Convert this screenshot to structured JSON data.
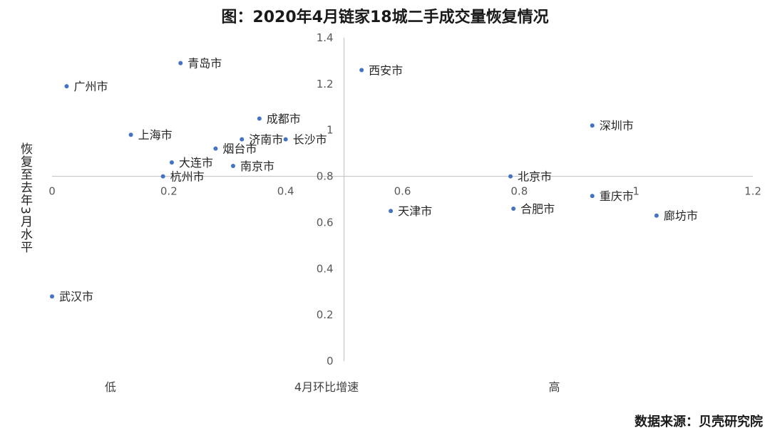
{
  "chart_data": {
    "type": "scatter",
    "title": "图：2020年4月链家18城二手成交量恢复情况",
    "ylabel": "恢复至去年3月水平",
    "xlim": [
      0,
      1.2
    ],
    "ylim": [
      0,
      1.4
    ],
    "x_ticks": [
      "0",
      "0.2",
      "0.4",
      "0.6",
      "0.8",
      "1",
      "1.2"
    ],
    "y_ticks": [
      "0",
      "0.2",
      "0.4",
      "0.6",
      "0.8",
      "1",
      "1.2",
      "1.4"
    ],
    "x_axis_crosses_y_at": 0.8,
    "y_axis_crosses_x_at": 0.5,
    "x_categories": [
      "低",
      "4月环比增速",
      "高"
    ],
    "grid": false,
    "marker_color": "#4472c4",
    "points": [
      {
        "label": "青岛市",
        "x": 0.22,
        "y": 1.29
      },
      {
        "label": "广州市",
        "x": 0.025,
        "y": 1.19
      },
      {
        "label": "西安市",
        "x": 0.53,
        "y": 1.26
      },
      {
        "label": "成都市",
        "x": 0.355,
        "y": 1.05
      },
      {
        "label": "深圳市",
        "x": 0.925,
        "y": 1.02
      },
      {
        "label": "上海市",
        "x": 0.135,
        "y": 0.98
      },
      {
        "label": "济南市",
        "x": 0.325,
        "y": 0.96
      },
      {
        "label": "长沙市",
        "x": 0.4,
        "y": 0.96
      },
      {
        "label": "烟台市",
        "x": 0.28,
        "y": 0.92
      },
      {
        "label": "大连市",
        "x": 0.205,
        "y": 0.86
      },
      {
        "label": "南京市",
        "x": 0.31,
        "y": 0.845
      },
      {
        "label": "杭州市",
        "x": 0.19,
        "y": 0.8
      },
      {
        "label": "北京市",
        "x": 0.785,
        "y": 0.8
      },
      {
        "label": "重庆市",
        "x": 0.925,
        "y": 0.715
      },
      {
        "label": "合肥市",
        "x": 0.79,
        "y": 0.66
      },
      {
        "label": "天津市",
        "x": 0.58,
        "y": 0.65
      },
      {
        "label": "廊坊市",
        "x": 1.035,
        "y": 0.63
      },
      {
        "label": "武汉市",
        "x": 0.0,
        "y": 0.28
      }
    ]
  },
  "source": "数据来源：贝壳研究院"
}
